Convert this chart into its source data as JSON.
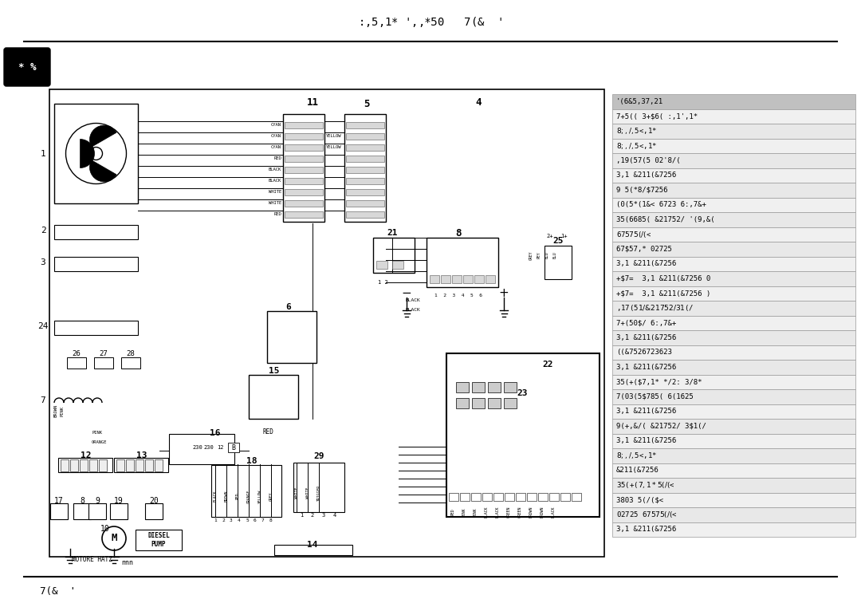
{
  "bg_color": "#ffffff",
  "title": ":,5,1* ',,$*5$0   7(&  '",
  "footer_left": "7(&  '",
  "page_label": "* %",
  "legend_entries": [
    "'(6&5,37,21",
    "7+5(( 3+$6( :,1',1*",
    "$8;,/,$5<,1*",
    "$8;,/,$5<,1*",
    ",19(57(5 02'8/(",
    "3,1 &211(&7256",
    "9 5(*8/$7256",
    "(0(5*(1&< 6723 6:,7&+",
    "35(6685( &21752/ '(9,&(",
    "67$57 5(/($<",
    "67$57,* 02725",
    "3,1 &211(&7256",
    "+$7=  3,1 &211(&7256 0",
    "+$7=  3,1 &211(&7256 )",
    ",17(51$/ &21752/ 3$1(/",
    "7+(50$/ 6:,7&+",
    "3,1 &211(&7256",
    "((&7526723623",
    "3,1 &211(&7256",
    "35(+($7,1* */2: 3/8*",
    "7(03(5$785( 6(1625",
    "3,1 &211(&7256",
    "9(+,&/( &21752/ 3$1(/",
    "3,1 &211(&7256",
    "$8;,/,$5<,1*",
    "&211(&7256",
    "35(+($7,1* 5(/($<",
    "3803 5(/($<",
    "02725 67$57 5(/($<",
    "3,1 &211(&7256"
  ]
}
